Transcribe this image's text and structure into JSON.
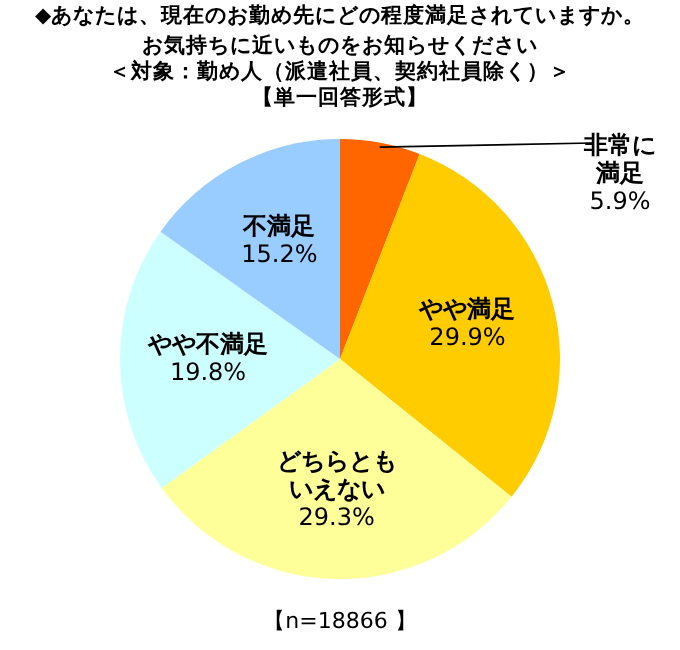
{
  "chart_data": {
    "type": "pie",
    "title": "◆あなたは、現在のお勤め先にどの程度満足されていますか。",
    "subtitle": "お気持ちに近いものをお知らせください",
    "categories": [
      "非常に満足",
      "やや満足",
      "どちらともいえない",
      "やや不満足",
      "不満足"
    ],
    "values": [
      5.9,
      29.9,
      29.3,
      19.8,
      15.2
    ],
    "value_labels": [
      "5.9%",
      "29.9%",
      "29.3%",
      "19.8%",
      "15.2%"
    ],
    "colors": [
      "#ff6600",
      "#ffcc00",
      "#ffff99",
      "#ccffff",
      "#99ccff"
    ],
    "legend": false,
    "annotations": [
      "＜対象：勤め人（派遣社員、契約社員除く）＞",
      "【単一回答形式】",
      "【n=18866 】"
    ]
  }
}
